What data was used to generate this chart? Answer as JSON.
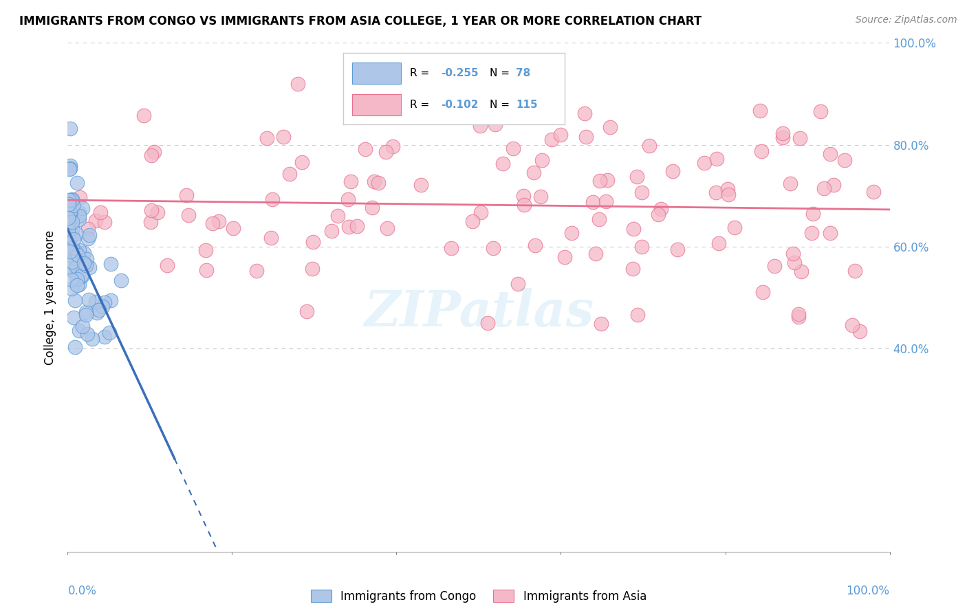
{
  "title": "IMMIGRANTS FROM CONGO VS IMMIGRANTS FROM ASIA COLLEGE, 1 YEAR OR MORE CORRELATION CHART",
  "source": "Source: ZipAtlas.com",
  "ylabel": "College, 1 year or more",
  "congo_R": -0.255,
  "congo_N": 78,
  "asia_R": -0.102,
  "asia_N": 115,
  "congo_color": "#aec6e8",
  "asia_color": "#f4b8c8",
  "congo_edge_color": "#5b9bd5",
  "asia_edge_color": "#e87090",
  "congo_line_color": "#3a6fbb",
  "asia_line_color": "#e87090",
  "watermark": "ZIPatlas",
  "xlim": [
    0.0,
    1.0
  ],
  "ylim": [
    0.0,
    1.0
  ],
  "yticks": [
    0.4,
    0.6,
    0.8,
    1.0
  ],
  "ytick_labels": [
    "40.0%",
    "60.0%",
    "80.0%",
    "100.0%"
  ],
  "right_axis_color": "#5b9bd5",
  "grid_color": "#cccccc",
  "legend_box_color": "#e0e0e0"
}
